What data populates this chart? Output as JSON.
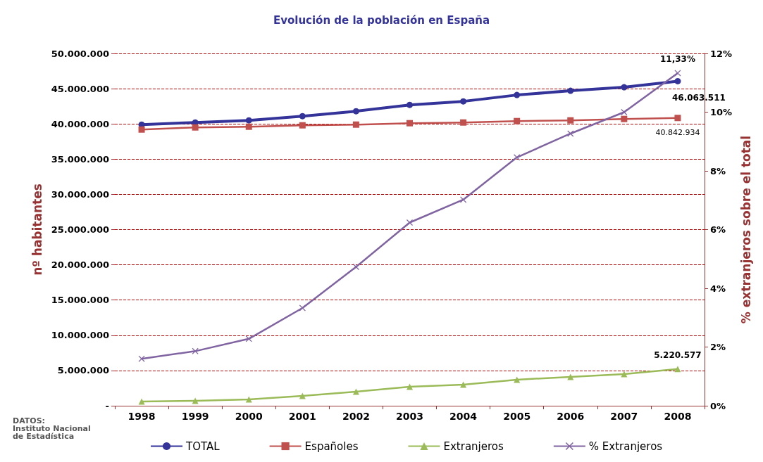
{
  "chart_data": {
    "type": "line",
    "title": "Evolución de la población en España",
    "ylabel": "nº habitantes",
    "y2label": "% extranjeros sobre el total",
    "categories": [
      "1998",
      "1999",
      "2000",
      "2001",
      "2002",
      "2003",
      "2004",
      "2005",
      "2006",
      "2007",
      "2008"
    ],
    "series": [
      {
        "name": "TOTAL",
        "color": "#333399",
        "marker": "circle",
        "values": [
          39900000,
          40200000,
          40500000,
          41100000,
          41800000,
          42700000,
          43200000,
          44100000,
          44700000,
          45200000,
          46063511
        ],
        "value_labels": [
          null,
          null,
          null,
          null,
          null,
          null,
          null,
          null,
          null,
          null,
          "46.063.511"
        ]
      },
      {
        "name": "Españoles",
        "color": "#c0504d",
        "marker": "square",
        "values": [
          39200000,
          39500000,
          39600000,
          39800000,
          39900000,
          40100000,
          40200000,
          40400000,
          40500000,
          40700000,
          40842934
        ],
        "value_labels": [
          null,
          null,
          null,
          null,
          null,
          null,
          null,
          null,
          null,
          null,
          "40.842.934"
        ]
      },
      {
        "name": "Extranjeros",
        "color": "#9bbb59",
        "marker": "triangle",
        "values": [
          600000,
          700000,
          900000,
          1400000,
          2000000,
          2700000,
          3000000,
          3700000,
          4100000,
          4500000,
          5220577
        ],
        "value_labels": [
          null,
          null,
          null,
          null,
          null,
          null,
          null,
          null,
          null,
          null,
          "5.220.577"
        ]
      },
      {
        "name": "% Extranjeros",
        "color": "#8064a2",
        "marker": "cross",
        "axis": "y2",
        "values": [
          1.6,
          1.86,
          2.28,
          3.33,
          4.73,
          6.24,
          7.02,
          8.46,
          9.27,
          10.0,
          11.33
        ],
        "value_labels": [
          null,
          null,
          null,
          null,
          null,
          null,
          null,
          null,
          null,
          null,
          "11,33%"
        ]
      }
    ],
    "ylim": [
      0,
      50000000
    ],
    "yticks": [
      {
        "value": 0,
        "label": "-"
      },
      {
        "value": 5000000,
        "label": "5.000.000"
      },
      {
        "value": 10000000,
        "label": "10.000.000"
      },
      {
        "value": 15000000,
        "label": "15.000.000"
      },
      {
        "value": 20000000,
        "label": "20.000.000"
      },
      {
        "value": 25000000,
        "label": "25.000.000"
      },
      {
        "value": 30000000,
        "label": "30.000.000"
      },
      {
        "value": 35000000,
        "label": "35.000.000"
      },
      {
        "value": 40000000,
        "label": "40.000.000"
      },
      {
        "value": 45000000,
        "label": "45.000.000"
      },
      {
        "value": 50000000,
        "label": "50.000.000"
      }
    ],
    "y2lim": [
      0,
      12
    ],
    "y2ticks": [
      {
        "value": 0,
        "label": "0%"
      },
      {
        "value": 2,
        "label": "2%"
      },
      {
        "value": 4,
        "label": "4%"
      },
      {
        "value": 6,
        "label": "6%"
      },
      {
        "value": 8,
        "label": "8%"
      },
      {
        "value": 10,
        "label": "10%"
      },
      {
        "value": 12,
        "label": "12%"
      }
    ],
    "grid": "y",
    "legend": "bottom",
    "line_style": "solid",
    "annotations": [
      "DATOS:\nInstituto Nacional\nde Estadística"
    ]
  }
}
